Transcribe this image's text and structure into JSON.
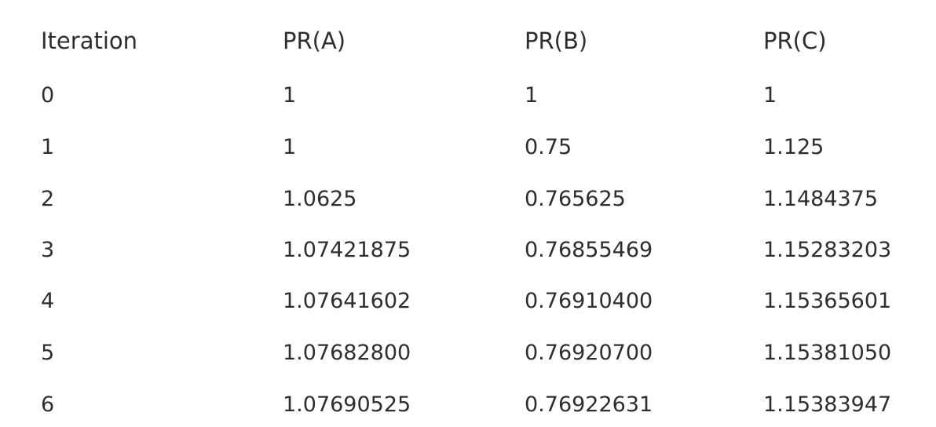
{
  "table": {
    "headers": [
      "Iteration",
      "PR(A)",
      "PR(B)",
      "PR(C)"
    ],
    "rows": [
      [
        "0",
        "1",
        "1",
        "1"
      ],
      [
        "1",
        "1",
        "0.75",
        "1.125"
      ],
      [
        "2",
        "1.0625",
        "0.765625",
        "1.1484375"
      ],
      [
        "3",
        "1.07421875",
        "0.76855469",
        "1.15283203"
      ],
      [
        "4",
        "1.07641602",
        "0.76910400",
        "1.15365601"
      ],
      [
        "5",
        "1.07682800",
        "0.76920700",
        "1.15381050"
      ],
      [
        "6",
        "1.07690525",
        "0.76922631",
        "1.15383947"
      ]
    ]
  }
}
